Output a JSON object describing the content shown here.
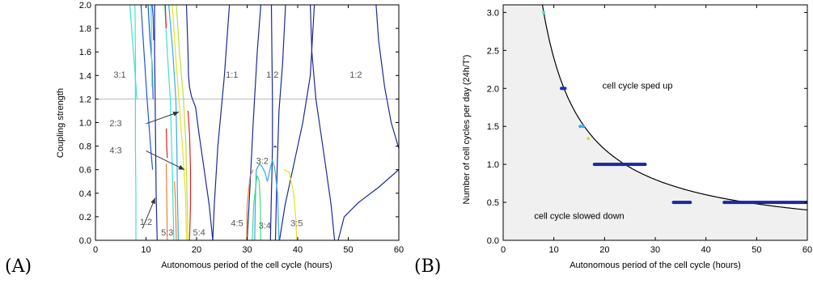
{
  "chart_data": [
    {
      "type": "line",
      "panel_label": "(A)",
      "xlabel": "Autonomous period of the cell cycle (hours)",
      "ylabel": "Coupling strength",
      "xlim": [
        0,
        60
      ],
      "ylim": [
        0,
        2
      ],
      "xticks": [
        "0",
        "10",
        "20",
        "30",
        "40",
        "50",
        "60"
      ],
      "yticks": [
        "0.0",
        "0.2",
        "0.4",
        "0.6",
        "0.8",
        "1.0",
        "1.2",
        "1.4",
        "1.6",
        "1.8",
        "2.0"
      ],
      "reference_line": {
        "y": 1.2,
        "color": "#bbbbbb"
      },
      "colors": {
        "navy": "#1a2a9a",
        "blue": "#2255dd",
        "cyan": "#40e0d0",
        "skyblue": "#33aaee",
        "yellow": "#e8e020",
        "lime": "#b8e040",
        "orange": "#f08030",
        "red": "#dd2222",
        "green": "#44dd88"
      },
      "region_labels": [
        {
          "text": "3:1",
          "x": 4.8,
          "y": 1.38
        },
        {
          "text": "1:1",
          "x": 27.0,
          "y": 1.38
        },
        {
          "text": "1:2",
          "x": 35.0,
          "y": 1.38
        },
        {
          "text": "1:2",
          "x": 51.5,
          "y": 1.38
        },
        {
          "text": "2:3",
          "x": 4.0,
          "y": 0.97
        },
        {
          "text": "4:3",
          "x": 4.0,
          "y": 0.74
        },
        {
          "text": "3:2",
          "x": 33.0,
          "y": 0.65
        },
        {
          "text": "1:2",
          "x": 10.0,
          "y": 0.13
        },
        {
          "text": "5:3",
          "x": 14.2,
          "y": 0.04
        },
        {
          "text": "5:4",
          "x": 20.5,
          "y": 0.04
        },
        {
          "text": "4:5",
          "x": 28.0,
          "y": 0.12
        },
        {
          "text": "3:4",
          "x": 33.5,
          "y": 0.1
        },
        {
          "text": "3:5",
          "x": 39.8,
          "y": 0.12
        }
      ],
      "annotations": [
        {
          "from": [
            10.0,
            0.99
          ],
          "to": [
            16.5,
            1.09
          ]
        },
        {
          "from": [
            10.0,
            0.76
          ],
          "to": [
            17.6,
            0.6
          ]
        },
        {
          "from": [
            9.3,
            0.1
          ],
          "to": [
            11.8,
            0.36
          ]
        }
      ],
      "series": [
        {
          "color": "navy",
          "points": [
            [
              12.2,
              0
            ],
            [
              12.0,
              0.4
            ],
            [
              11.9,
              0.8
            ],
            [
              11.8,
              1.2
            ],
            [
              11.7,
              1.6
            ],
            [
              11.7,
              2.0
            ]
          ]
        },
        {
          "color": "navy",
          "points": [
            [
              18.0,
              2.0
            ],
            [
              18.3,
              1.6
            ],
            [
              18.4,
              1.4
            ],
            [
              18.6,
              1.3
            ],
            [
              19.0,
              1.22
            ],
            [
              19.8,
              1.13
            ],
            [
              20.5,
              0.9
            ],
            [
              21.5,
              0.6
            ],
            [
              22.5,
              0.3
            ],
            [
              23.2,
              0
            ]
          ]
        },
        {
          "color": "navy",
          "points": [
            [
              23.2,
              0
            ],
            [
              23.5,
              0.3
            ],
            [
              24.2,
              0.8
            ],
            [
              25.5,
              1.4
            ],
            [
              26.5,
              2.0
            ]
          ]
        },
        {
          "color": "navy",
          "points": [
            [
              34.8,
              2.0
            ],
            [
              34.9,
              1.6
            ],
            [
              35.0,
              1.2
            ],
            [
              35.0,
              0.8
            ],
            [
              34.9,
              0.55
            ],
            [
              34.8,
              0.4
            ],
            [
              34.7,
              0.2
            ],
            [
              34.6,
              0
            ]
          ]
        },
        {
          "color": "navy",
          "points": [
            [
              30.0,
              0
            ],
            [
              30.5,
              0.4
            ],
            [
              31.2,
              1.0
            ],
            [
              32.0,
              1.6
            ],
            [
              32.7,
              2.0
            ]
          ]
        },
        {
          "color": "navy",
          "points": [
            [
              35.6,
              0
            ],
            [
              35.8,
              0.4
            ],
            [
              36.0,
              0.7
            ],
            [
              36.3,
              1.1
            ],
            [
              37.0,
              1.5
            ],
            [
              37.6,
              2.0
            ]
          ]
        },
        {
          "color": "navy",
          "points": [
            [
              36.4,
              0
            ],
            [
              37.5,
              0.3
            ],
            [
              39.0,
              0.6
            ],
            [
              41.0,
              1.0
            ],
            [
              42.5,
              1.4
            ],
            [
              43.3,
              2.0
            ]
          ]
        },
        {
          "color": "navy",
          "points": [
            [
              47.3,
              0
            ],
            [
              46.6,
              0.3
            ],
            [
              45.3,
              0.7
            ],
            [
              43.6,
              1.2
            ],
            [
              42.8,
              1.6
            ],
            [
              42.5,
              2.0
            ]
          ]
        },
        {
          "color": "navy",
          "points": [
            [
              48.0,
              0
            ],
            [
              49.2,
              0.2
            ],
            [
              52.0,
              0.32
            ],
            [
              56.0,
              0.45
            ],
            [
              60.0,
              0.6
            ]
          ]
        },
        {
          "color": "navy",
          "points": [
            [
              60.0,
              0.78
            ],
            [
              58.5,
              1.0
            ],
            [
              57.2,
              1.3
            ],
            [
              56.0,
              1.7
            ],
            [
              55.5,
              2.0
            ]
          ]
        },
        {
          "color": "navy",
          "points": [
            [
              35.3,
              0.79
            ],
            [
              35.5,
              0.8
            ],
            [
              35.8,
              0.79
            ]
          ]
        },
        {
          "color": "blue",
          "points": [
            [
              9.0,
              2.0
            ],
            [
              9.6,
              1.6
            ],
            [
              10.2,
              1.2
            ],
            [
              10.9,
              0.8
            ],
            [
              11.3,
              0.6
            ]
          ]
        },
        {
          "color": "blue",
          "points": [
            [
              10.4,
              2.0
            ],
            [
              10.8,
              1.7
            ],
            [
              11.2,
              1.5
            ],
            [
              11.4,
              1.2
            ]
          ]
        },
        {
          "color": "blue",
          "points": [
            [
              11.2,
              2.0
            ],
            [
              11.4,
              1.9
            ],
            [
              11.5,
              1.7
            ]
          ]
        },
        {
          "color": "cyan",
          "points": [
            [
              7.8,
              2.0
            ],
            [
              7.9,
              1.6
            ],
            [
              7.9,
              1.2
            ],
            [
              7.9,
              0.8
            ],
            [
              8.0,
              0.4
            ],
            [
              8.0,
              0
            ]
          ]
        },
        {
          "color": "cyan",
          "points": [
            [
              6.8,
              2.0
            ],
            [
              7.5,
              1.6
            ],
            [
              8.2,
              1.2
            ]
          ]
        },
        {
          "color": "cyan",
          "points": [
            [
              11.0,
              2.0
            ],
            [
              11.1,
              1.6
            ],
            [
              11.2,
              1.3
            ]
          ]
        },
        {
          "color": "cyan",
          "points": [
            [
              13.7,
              2.0
            ],
            [
              14.2,
              1.6
            ],
            [
              14.8,
              1.2
            ],
            [
              15.2,
              0.6
            ],
            [
              15.5,
              0
            ]
          ]
        },
        {
          "color": "skyblue",
          "points": [
            [
              14.5,
              2.0
            ],
            [
              15.3,
              1.6
            ],
            [
              15.9,
              1.2
            ],
            [
              16.1,
              0.8
            ],
            [
              16.2,
              0.4
            ],
            [
              16.4,
              0
            ]
          ]
        },
        {
          "color": "skyblue",
          "points": [
            [
              31.5,
              0
            ],
            [
              31.6,
              0.3
            ],
            [
              31.8,
              0.6
            ],
            [
              32.5,
              0.65
            ],
            [
              33.0,
              0.62
            ],
            [
              33.5,
              0.58
            ],
            [
              34.0,
              0.5
            ],
            [
              34.5,
              0.6
            ],
            [
              35.0,
              0.68
            ],
            [
              35.5,
              0.6
            ],
            [
              36.0,
              0.4
            ],
            [
              36.3,
              0
            ]
          ]
        },
        {
          "color": "yellow",
          "points": [
            [
              15.2,
              2.0
            ],
            [
              15.8,
              1.6
            ],
            [
              16.5,
              1.2
            ],
            [
              17.2,
              0.8
            ],
            [
              17.8,
              0.4
            ],
            [
              18.0,
              0
            ]
          ]
        },
        {
          "color": "yellow",
          "points": [
            [
              37.2,
              0.6
            ],
            [
              38.3,
              0.58
            ],
            [
              39.2,
              0.4
            ],
            [
              39.6,
              0.2
            ],
            [
              39.8,
              0
            ]
          ]
        },
        {
          "color": "lime",
          "points": [
            [
              16.0,
              2.0
            ],
            [
              16.6,
              1.6
            ],
            [
              17.4,
              1.2
            ],
            [
              17.9,
              0.8
            ],
            [
              18.3,
              0
            ]
          ]
        },
        {
          "color": "red",
          "points": [
            [
              13.8,
              2.0
            ],
            [
              14.0,
              1.8
            ]
          ]
        },
        {
          "color": "red",
          "points": [
            [
              14.0,
              0.95
            ],
            [
              14.1,
              0.8
            ],
            [
              14.2,
              0.7
            ]
          ]
        },
        {
          "color": "red",
          "points": [
            [
              18.3,
              1.1
            ],
            [
              18.6,
              0.9
            ],
            [
              18.8,
              0.6
            ],
            [
              18.8,
              0.3
            ],
            [
              18.6,
              0
            ]
          ]
        },
        {
          "color": "orange",
          "points": [
            [
              14.0,
              0.65
            ],
            [
              14.1,
              0.4
            ],
            [
              14.2,
              0
            ]
          ]
        },
        {
          "color": "orange",
          "points": [
            [
              15.6,
              0.5
            ],
            [
              15.8,
              0.35
            ],
            [
              16.0,
              0
            ]
          ]
        },
        {
          "color": "orange",
          "points": [
            [
              29.9,
              0
            ],
            [
              30.0,
              0.3
            ],
            [
              30.6,
              0.55
            ],
            [
              31.2,
              0.6
            ]
          ]
        },
        {
          "color": "green",
          "points": [
            [
              31.0,
              0
            ],
            [
              31.3,
              0.3
            ],
            [
              31.8,
              0.5
            ],
            [
              32.0,
              0.55
            ],
            [
              32.4,
              0.5
            ],
            [
              32.6,
              0.3
            ],
            [
              32.7,
              0
            ]
          ]
        }
      ]
    },
    {
      "type": "scatter",
      "panel_label": "(B)",
      "xlabel": "Autonomous period of the cell cycle (hours)",
      "ylabel": "Number of cell cycles per day (24h/T')",
      "xlim": [
        0,
        60
      ],
      "ylim": [
        0,
        3.1
      ],
      "xticks": [
        "0",
        "10",
        "20",
        "30",
        "40",
        "50",
        "60"
      ],
      "yticks": [
        "0.0",
        "0.5",
        "1.0",
        "1.5",
        "2.0",
        "2.5",
        "3.0"
      ],
      "curve": {
        "formula": "24/x",
        "x_start": 7.74,
        "x_end": 60
      },
      "region_labels": [
        {
          "text": "cell cycle sped up",
          "x": 26.5,
          "y": 2.0
        },
        {
          "text": "cell cycle slowed down",
          "x": 15.0,
          "y": 0.28
        }
      ],
      "colors": {
        "navy": "#1a2a9a",
        "blue": "#1133cc",
        "cyan": "#40e0d0",
        "skyblue": "#33aaee",
        "yellow": "#d0e030",
        "shade": "#f0f0f0"
      },
      "segments": [
        {
          "color": "navy",
          "y": 1.0,
          "x": [
            18.0,
            28.0
          ]
        },
        {
          "color": "navy",
          "y": 0.5,
          "x": [
            33.6,
            36.9
          ]
        },
        {
          "color": "navy",
          "y": 0.5,
          "x": [
            43.6,
            60.0
          ]
        },
        {
          "color": "blue",
          "y": 2.0,
          "x": [
            11.5,
            12.2
          ]
        }
      ],
      "points": [
        {
          "color": "cyan",
          "x": 8.0,
          "y": 3.0
        },
        {
          "color": "skyblue",
          "x": 15.2,
          "y": 1.5
        },
        {
          "color": "skyblue",
          "x": 15.8,
          "y": 1.5
        },
        {
          "color": "yellow",
          "x": 16.8,
          "y": 1.34
        }
      ]
    }
  ]
}
